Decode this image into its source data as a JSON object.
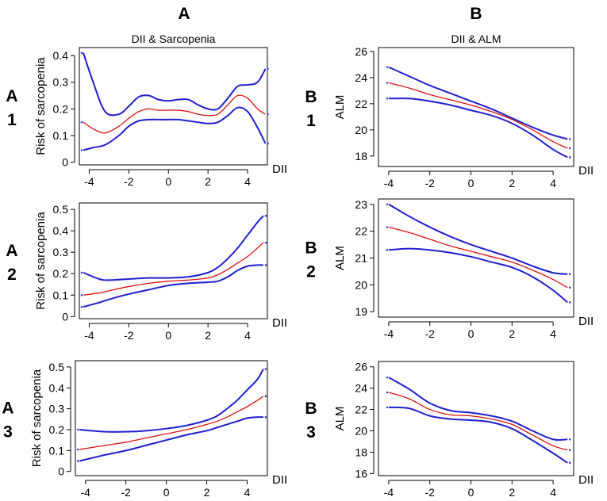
{
  "column_headers": {
    "A": "A",
    "B": "B"
  },
  "colors": {
    "ci": "#1f1fd0",
    "estimate": "#e01010"
  },
  "chart_data": [
    {
      "id": "A1",
      "type": "line",
      "row_label": [
        "A",
        "1"
      ],
      "title": "DII & Sarcopenia",
      "xlabel": "DII",
      "ylabel": "Risk of sarcopenia",
      "xlim": [
        -4.5,
        5
      ],
      "ylim": [
        -0.01,
        0.43
      ],
      "xticks": [
        -4,
        -2,
        0,
        2,
        4
      ],
      "yticks": [
        0,
        0.1,
        0.2,
        0.3,
        0.4
      ],
      "xtick_labels": [
        "-4",
        "-2",
        "0",
        "2",
        "4"
      ],
      "ytick_labels": [
        "0",
        "0.1",
        "0.2",
        "0.3",
        "0.4"
      ],
      "series": [
        {
          "name": "upper CI",
          "x": [
            -4.3,
            -3.8,
            -3.2,
            -2.5,
            -2,
            -1.5,
            -1,
            -0.5,
            0,
            0.5,
            1,
            1.5,
            2,
            2.5,
            3,
            3.5,
            4,
            4.5,
            4.9
          ],
          "y": [
            0.41,
            0.3,
            0.19,
            0.18,
            0.21,
            0.245,
            0.25,
            0.235,
            0.23,
            0.235,
            0.235,
            0.215,
            0.2,
            0.2,
            0.24,
            0.285,
            0.29,
            0.3,
            0.35
          ]
        },
        {
          "name": "estimate",
          "x": [
            -4.3,
            -3.8,
            -3.2,
            -2.5,
            -2,
            -1.5,
            -1,
            -0.5,
            0,
            0.5,
            1,
            1.5,
            2,
            2.5,
            3,
            3.5,
            4,
            4.5,
            4.9
          ],
          "y": [
            0.15,
            0.125,
            0.11,
            0.135,
            0.165,
            0.19,
            0.2,
            0.195,
            0.195,
            0.195,
            0.19,
            0.18,
            0.175,
            0.18,
            0.215,
            0.25,
            0.24,
            0.2,
            0.18
          ]
        },
        {
          "name": "lower CI",
          "x": [
            -4.3,
            -3.8,
            -3.2,
            -2.5,
            -2,
            -1.5,
            -1,
            -0.5,
            0,
            0.5,
            1,
            1.5,
            2,
            2.5,
            3,
            3.5,
            4,
            4.5,
            4.9
          ],
          "y": [
            0.045,
            0.055,
            0.065,
            0.1,
            0.135,
            0.155,
            0.16,
            0.16,
            0.16,
            0.16,
            0.155,
            0.15,
            0.145,
            0.15,
            0.175,
            0.205,
            0.19,
            0.13,
            0.07
          ]
        }
      ]
    },
    {
      "id": "B1",
      "type": "line",
      "row_label": [
        "B",
        "1"
      ],
      "title": "DII & ALM",
      "xlabel": "DII",
      "ylabel": "ALM",
      "xlim": [
        -4.5,
        5
      ],
      "ylim": [
        17.2,
        26.3
      ],
      "xticks": [
        -4,
        -2,
        0,
        2,
        4
      ],
      "yticks": [
        18,
        20,
        22,
        24,
        26
      ],
      "xtick_labels": [
        "-4",
        "-2",
        "0",
        "2",
        "4"
      ],
      "ytick_labels": [
        "18",
        "20",
        "22",
        "24",
        "26"
      ],
      "series": [
        {
          "name": "upper CI",
          "x": [
            -4,
            -3,
            -2,
            -1,
            0,
            1,
            2,
            3,
            4,
            4.7
          ],
          "y": [
            24.8,
            24.1,
            23.4,
            22.8,
            22.2,
            21.6,
            20.9,
            20.2,
            19.6,
            19.3
          ]
        },
        {
          "name": "estimate",
          "x": [
            -4,
            -3,
            -2,
            -1,
            0,
            1,
            2,
            3,
            4,
            4.7
          ],
          "y": [
            23.6,
            23.2,
            22.7,
            22.3,
            21.9,
            21.4,
            20.8,
            20,
            19.1,
            18.6
          ]
        },
        {
          "name": "lower CI",
          "x": [
            -4,
            -3,
            -2,
            -1,
            0,
            1,
            2,
            3,
            4,
            4.7
          ],
          "y": [
            22.4,
            22.4,
            22.2,
            21.9,
            21.5,
            21.1,
            20.5,
            19.6,
            18.5,
            17.9
          ]
        }
      ]
    },
    {
      "id": "A2",
      "type": "line",
      "row_label": [
        "A",
        "2"
      ],
      "title": "",
      "xlabel": "DII",
      "ylabel": "Risk of sarcopenia",
      "xlim": [
        -4.5,
        5
      ],
      "ylim": [
        -0.01,
        0.53
      ],
      "xticks": [
        -4,
        -2,
        0,
        2,
        4
      ],
      "yticks": [
        0,
        0.1,
        0.2,
        0.3,
        0.4,
        0.5
      ],
      "xtick_labels": [
        "-4",
        "-2",
        "0",
        "2",
        "4"
      ],
      "ytick_labels": [
        "0",
        "0.1",
        "0.2",
        "0.3",
        "0.4",
        "0.5"
      ],
      "series": [
        {
          "name": "upper CI",
          "x": [
            -4.3,
            -3.5,
            -3,
            -2,
            -1,
            0,
            1,
            2,
            2.5,
            3,
            3.5,
            4,
            4.5,
            4.8
          ],
          "y": [
            0.205,
            0.175,
            0.17,
            0.175,
            0.18,
            0.18,
            0.185,
            0.205,
            0.23,
            0.27,
            0.32,
            0.38,
            0.44,
            0.47
          ]
        },
        {
          "name": "estimate",
          "x": [
            -4.3,
            -3.5,
            -3,
            -2,
            -1,
            0,
            1,
            2,
            2.5,
            3,
            3.5,
            4,
            4.5,
            4.8
          ],
          "y": [
            0.1,
            0.11,
            0.12,
            0.14,
            0.155,
            0.165,
            0.17,
            0.18,
            0.195,
            0.22,
            0.25,
            0.28,
            0.32,
            0.345
          ]
        },
        {
          "name": "lower CI",
          "x": [
            -4.3,
            -3.5,
            -3,
            -2,
            -1,
            0,
            1,
            2,
            2.5,
            3,
            3.5,
            4,
            4.5,
            4.8
          ],
          "y": [
            0.045,
            0.065,
            0.08,
            0.105,
            0.125,
            0.145,
            0.155,
            0.16,
            0.165,
            0.185,
            0.215,
            0.235,
            0.24,
            0.24
          ]
        }
      ]
    },
    {
      "id": "B2",
      "type": "line",
      "row_label": [
        "B",
        "2"
      ],
      "title": "",
      "xlabel": "DII",
      "ylabel": "ALM",
      "xlim": [
        -4.5,
        5
      ],
      "ylim": [
        18.8,
        23.2
      ],
      "xticks": [
        -4,
        -2,
        0,
        2,
        4
      ],
      "yticks": [
        19,
        20,
        21,
        22,
        23
      ],
      "xtick_labels": [
        "-4",
        "-2",
        "0",
        "2",
        "4"
      ],
      "ytick_labels": [
        "19",
        "20",
        "21",
        "22",
        "23"
      ],
      "series": [
        {
          "name": "upper CI",
          "x": [
            -4,
            -3,
            -2,
            -1,
            0,
            1,
            2,
            3,
            4,
            4.7
          ],
          "y": [
            23,
            22.55,
            22.15,
            21.8,
            21.5,
            21.25,
            21,
            20.7,
            20.45,
            20.4
          ]
        },
        {
          "name": "estimate",
          "x": [
            -4,
            -3,
            -2,
            -1,
            0,
            1,
            2,
            3,
            4,
            4.7
          ],
          "y": [
            22.15,
            21.95,
            21.7,
            21.45,
            21.25,
            21.05,
            20.85,
            20.55,
            20.2,
            19.9
          ]
        },
        {
          "name": "lower CI",
          "x": [
            -4,
            -3,
            -2,
            -1,
            0,
            1,
            2,
            3,
            4,
            4.7
          ],
          "y": [
            21.3,
            21.35,
            21.3,
            21.2,
            21.05,
            20.85,
            20.65,
            20.3,
            19.8,
            19.35
          ]
        }
      ]
    },
    {
      "id": "A3",
      "type": "line",
      "row_label": [
        "A",
        "3"
      ],
      "title": "",
      "xlabel": "DII",
      "ylabel": "Risk of sarcopenia",
      "xlim": [
        -4.5,
        5
      ],
      "ylim": [
        -0.02,
        0.53
      ],
      "xticks": [
        -4,
        -2,
        0,
        2,
        4
      ],
      "yticks": [
        0,
        0.1,
        0.2,
        0.3,
        0.4,
        0.5
      ],
      "xtick_labels": [
        "-4",
        "-2",
        "0",
        "2",
        "4"
      ],
      "ytick_labels": [
        "0",
        "0.1",
        "0.2",
        "0.3",
        "0.4",
        "0.5"
      ],
      "series": [
        {
          "name": "upper CI",
          "x": [
            -4.3,
            -3,
            -2,
            -1,
            0,
            1,
            2,
            2.5,
            3,
            3.5,
            4,
            4.5,
            4.8
          ],
          "y": [
            0.2,
            0.19,
            0.19,
            0.195,
            0.205,
            0.22,
            0.245,
            0.265,
            0.3,
            0.34,
            0.39,
            0.44,
            0.49
          ]
        },
        {
          "name": "estimate",
          "x": [
            -4.3,
            -3,
            -2,
            -1,
            0,
            1,
            2,
            2.5,
            3,
            3.5,
            4,
            4.5,
            4.8
          ],
          "y": [
            0.105,
            0.125,
            0.14,
            0.16,
            0.18,
            0.2,
            0.225,
            0.24,
            0.26,
            0.285,
            0.31,
            0.34,
            0.36
          ]
        },
        {
          "name": "lower CI",
          "x": [
            -4.3,
            -3,
            -2,
            -1,
            0,
            1,
            2,
            2.5,
            3,
            3.5,
            4,
            4.5,
            4.8
          ],
          "y": [
            0.05,
            0.08,
            0.1,
            0.125,
            0.15,
            0.175,
            0.195,
            0.21,
            0.225,
            0.24,
            0.255,
            0.26,
            0.26
          ]
        }
      ]
    },
    {
      "id": "B3",
      "type": "line",
      "row_label": [
        "B",
        "3"
      ],
      "title": "",
      "xlabel": "DII",
      "ylabel": "ALM",
      "xlim": [
        -4.5,
        5
      ],
      "ylim": [
        15.8,
        26.5
      ],
      "xticks": [
        -4,
        -2,
        0,
        2,
        4
      ],
      "yticks": [
        16,
        18,
        20,
        22,
        24,
        26
      ],
      "xtick_labels": [
        "-4",
        "-2",
        "0",
        "2",
        "4"
      ],
      "ytick_labels": [
        "16",
        "18",
        "20",
        "22",
        "24",
        "26"
      ],
      "series": [
        {
          "name": "upper CI",
          "x": [
            -4,
            -3,
            -2,
            -1,
            0,
            1,
            2,
            3,
            4,
            4.7
          ],
          "y": [
            25,
            23.9,
            22.6,
            21.9,
            21.7,
            21.4,
            20.9,
            20,
            19.2,
            19.2
          ]
        },
        {
          "name": "estimate",
          "x": [
            -4,
            -3,
            -2,
            -1,
            0,
            1,
            2,
            3,
            4,
            4.7
          ],
          "y": [
            23.6,
            23,
            22,
            21.5,
            21.4,
            21.1,
            20.6,
            19.6,
            18.6,
            18.2
          ]
        },
        {
          "name": "lower CI",
          "x": [
            -4,
            -3,
            -2,
            -1,
            0,
            1,
            2,
            3,
            4,
            4.7
          ],
          "y": [
            22.2,
            22.1,
            21.4,
            21.1,
            21,
            20.8,
            20.2,
            19.1,
            17.9,
            17
          ]
        }
      ]
    }
  ]
}
